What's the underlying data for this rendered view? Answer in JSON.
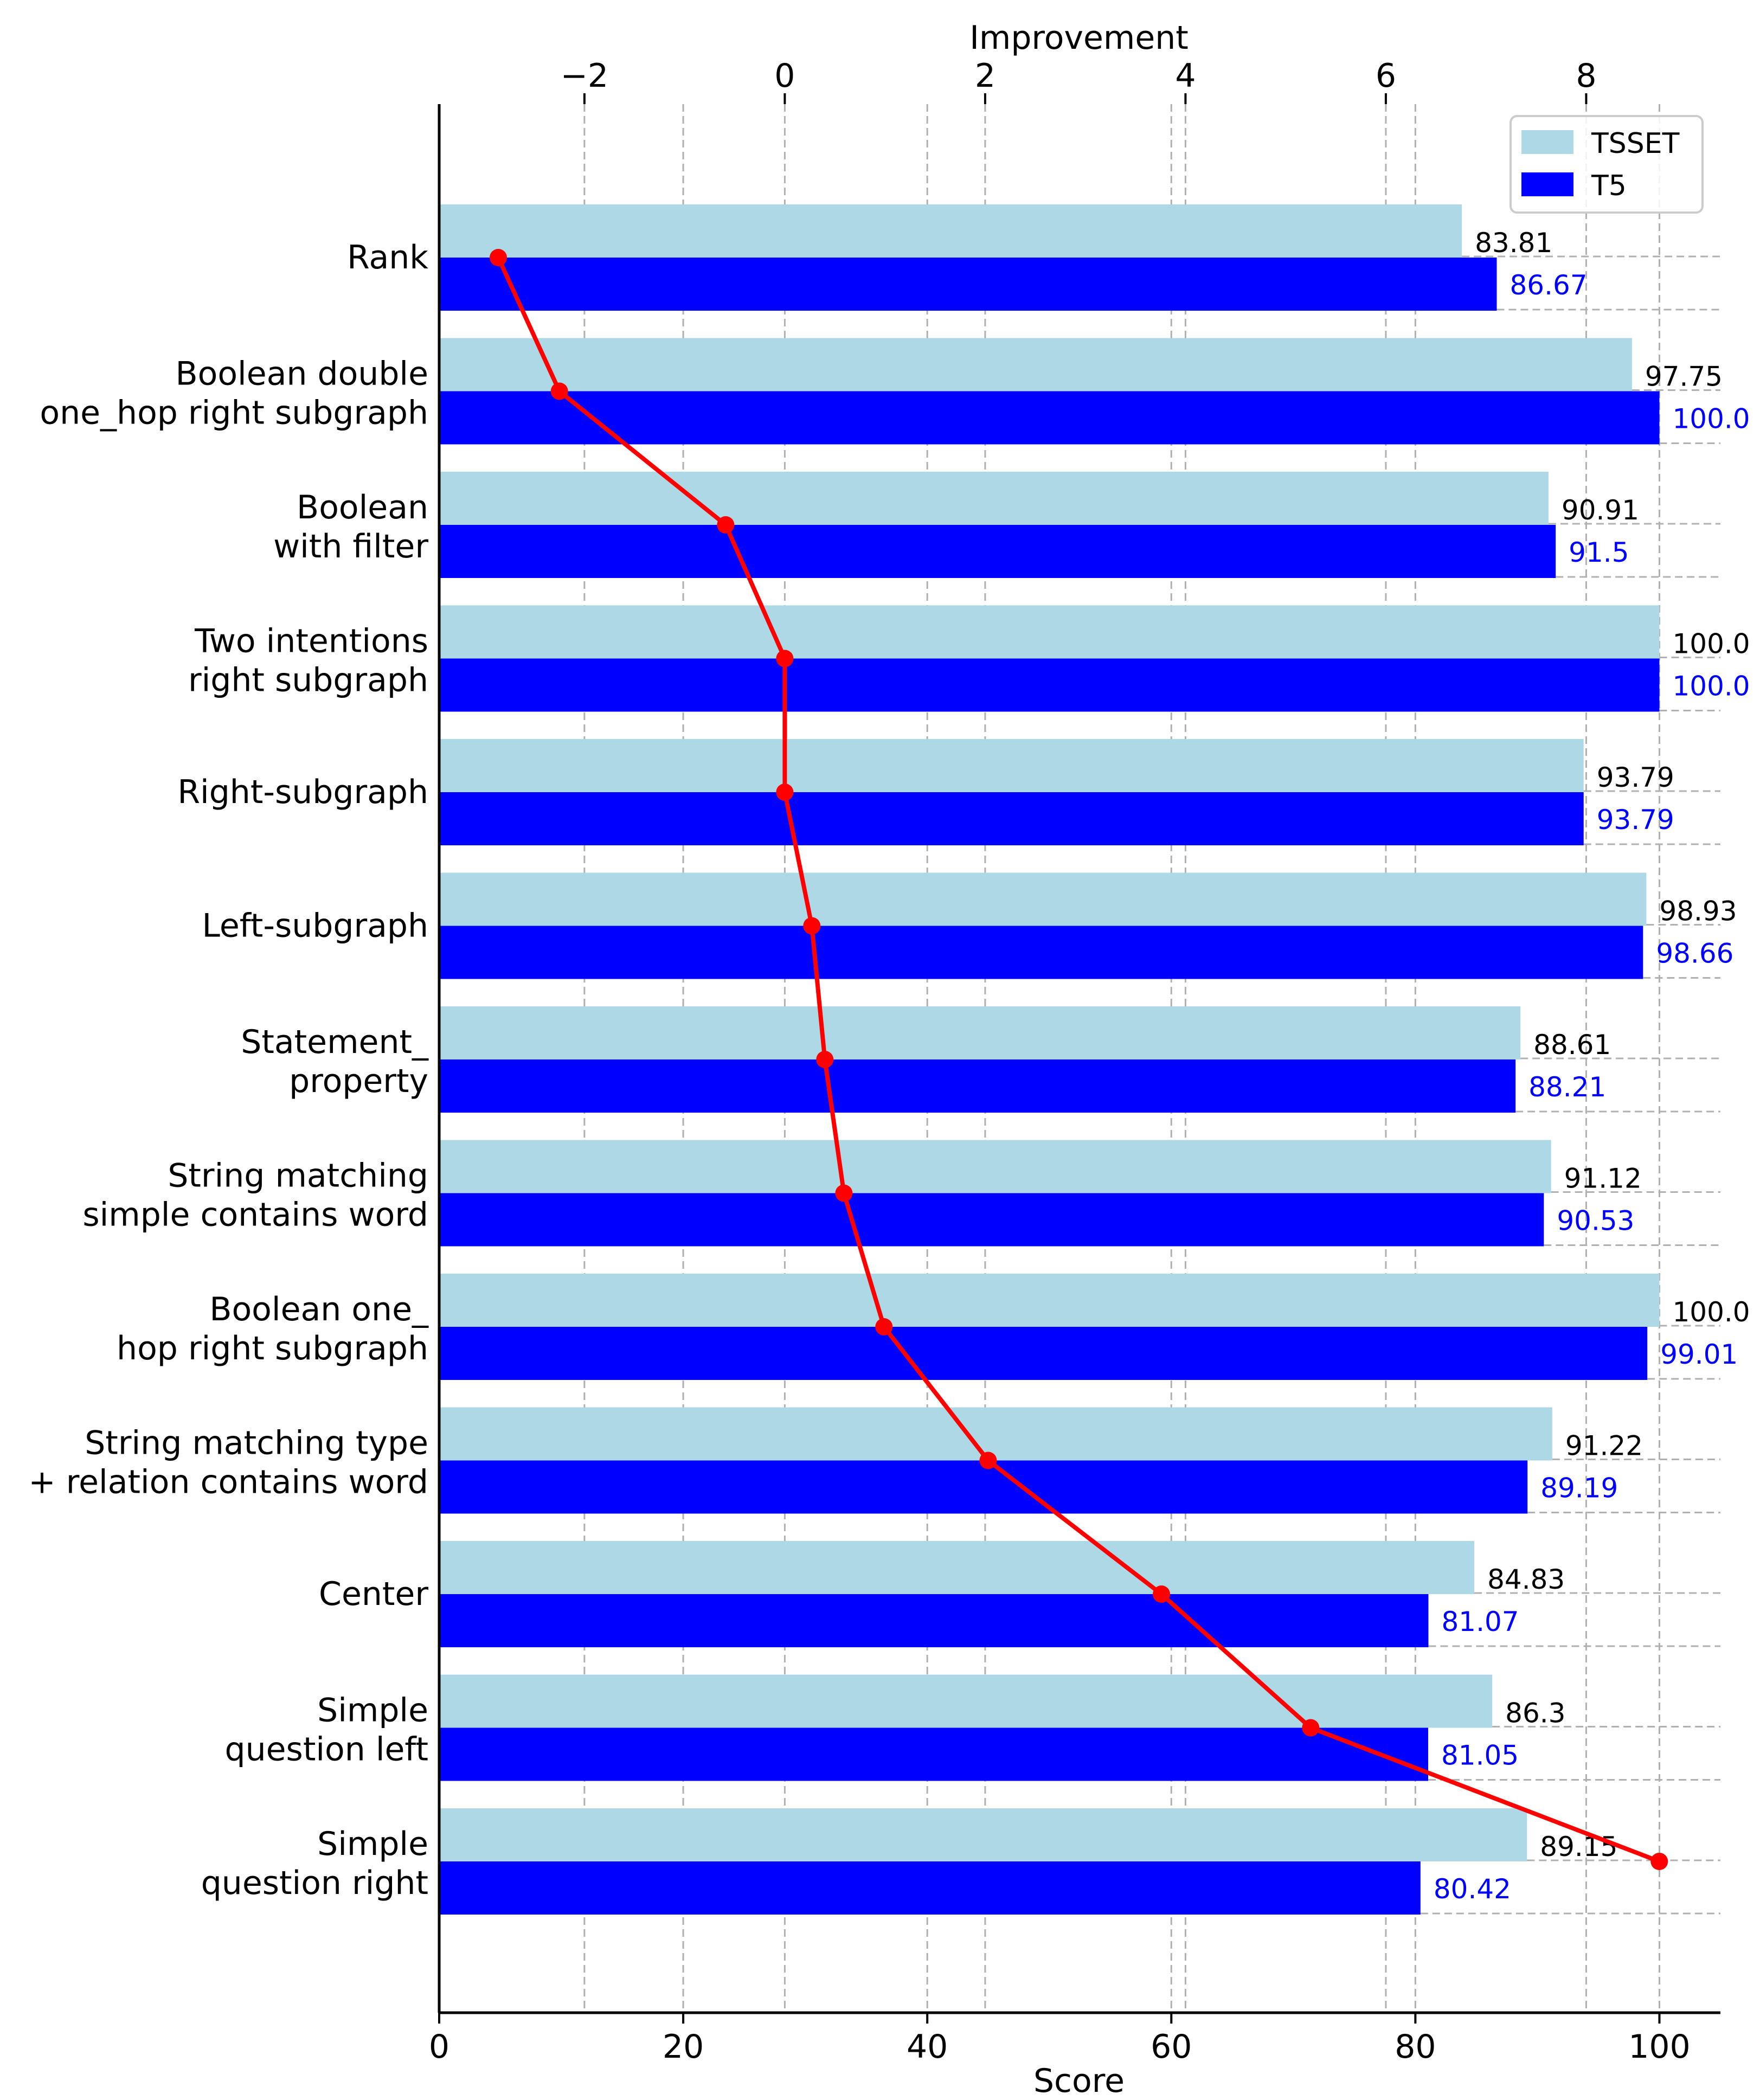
{
  "chart_data": {
    "type": "bar",
    "orientation": "horizontal",
    "xlabel": "Score",
    "x2label": "Improvement",
    "xlim": [
      0,
      105
    ],
    "x2lim": [
      -3.45,
      9.34
    ],
    "xticks": [
      0,
      20,
      40,
      60,
      80,
      100
    ],
    "xtick_labels": [
      "0",
      "20",
      "40",
      "60",
      "80",
      "100"
    ],
    "x2ticks": [
      -2,
      0,
      2,
      4,
      6,
      8
    ],
    "x2tick_labels": [
      "−2",
      "0",
      "2",
      "4",
      "6",
      "8"
    ],
    "grid": "vertical dashed",
    "legend": "top-right",
    "categories": [
      [
        "Rank"
      ],
      [
        "Boolean double",
        "one_hop right subgraph"
      ],
      [
        "Boolean",
        "with filter"
      ],
      [
        "Two intentions",
        "right subgraph"
      ],
      [
        "Right-subgraph"
      ],
      [
        "Left-subgraph"
      ],
      [
        "Statement_",
        "property"
      ],
      [
        "String matching",
        "simple contains word"
      ],
      [
        "Boolean one_",
        "hop right subgraph"
      ],
      [
        "String matching type",
        "+ relation contains word"
      ],
      [
        "Center"
      ],
      [
        "Simple",
        "question left"
      ],
      [
        "Simple",
        "question right"
      ]
    ],
    "series": [
      {
        "name": "TSSET",
        "color": "#add8e6",
        "values": [
          83.81,
          97.75,
          90.91,
          100.0,
          93.79,
          98.93,
          88.61,
          91.12,
          100.0,
          91.22,
          84.83,
          86.3,
          89.15
        ],
        "labels": [
          "83.81",
          "97.75",
          "90.91",
          "100.0",
          "93.79",
          "98.93",
          "88.61",
          "91.12",
          "100.0",
          "91.22",
          "84.83",
          "86.3",
          "89.15"
        ]
      },
      {
        "name": "T5",
        "color": "#0000ff",
        "values": [
          86.67,
          100.0,
          91.5,
          100.0,
          93.79,
          98.66,
          88.21,
          90.53,
          99.01,
          89.19,
          81.07,
          81.05,
          80.42
        ],
        "labels": [
          "86.67",
          "100.0",
          "91.5",
          "100.0",
          "93.79",
          "98.66",
          "88.21",
          "90.53",
          "99.01",
          "89.19",
          "81.07",
          "81.05",
          "80.42"
        ]
      }
    ],
    "improvement": {
      "color": "#ff0000",
      "values": [
        -2.86,
        -2.25,
        -0.59,
        0.0,
        0.0,
        0.27,
        0.4,
        0.59,
        0.99,
        2.03,
        3.76,
        5.25,
        8.73
      ]
    }
  }
}
